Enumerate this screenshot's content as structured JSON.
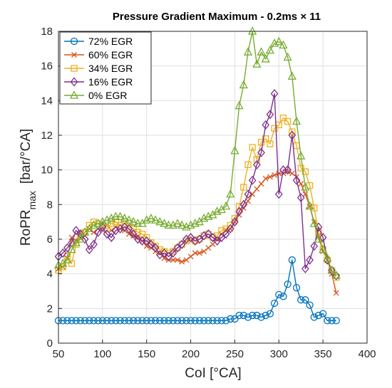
{
  "chart_data": {
    "type": "line",
    "title": "Pressure Gradient Maximum - 0.2ms × 11",
    "xlabel": "CoI [°CA]",
    "ylabel": {
      "main": "RoPR",
      "sub": "max",
      "unit": "[bar/°CA]"
    },
    "xlim": [
      50,
      400
    ],
    "ylim": [
      0,
      18
    ],
    "xticks": [
      "50",
      "100",
      "150",
      "200",
      "250",
      "300",
      "350",
      "400"
    ],
    "yticks": [
      "0",
      "2",
      "4",
      "6",
      "8",
      "10",
      "12",
      "14",
      "16",
      "18"
    ],
    "grid": true,
    "legend_position": "top-left",
    "series": [
      {
        "name": "72% EGR",
        "color": "#0072bd",
        "marker": "circle",
        "x": [
          50,
          55,
          60,
          65,
          70,
          75,
          80,
          85,
          90,
          95,
          100,
          105,
          110,
          115,
          120,
          125,
          130,
          135,
          140,
          145,
          150,
          155,
          160,
          165,
          170,
          175,
          180,
          185,
          190,
          195,
          200,
          205,
          210,
          215,
          220,
          225,
          230,
          235,
          240,
          245,
          250,
          255,
          260,
          265,
          270,
          275,
          280,
          285,
          290,
          295,
          300,
          305,
          310,
          315,
          320,
          325,
          330,
          335,
          340,
          345,
          350,
          355,
          360,
          365
        ],
        "y": [
          1.3,
          1.3,
          1.3,
          1.3,
          1.3,
          1.3,
          1.3,
          1.3,
          1.3,
          1.3,
          1.3,
          1.3,
          1.3,
          1.3,
          1.3,
          1.3,
          1.3,
          1.3,
          1.3,
          1.3,
          1.3,
          1.3,
          1.3,
          1.3,
          1.3,
          1.3,
          1.3,
          1.3,
          1.3,
          1.3,
          1.3,
          1.3,
          1.3,
          1.3,
          1.3,
          1.3,
          1.3,
          1.3,
          1.3,
          1.4,
          1.4,
          1.6,
          1.6,
          1.5,
          1.6,
          1.6,
          1.5,
          1.6,
          1.7,
          2.3,
          2.8,
          2.7,
          3.4,
          4.8,
          3.2,
          2.5,
          2.5,
          2.2,
          1.5,
          1.6,
          1.7,
          1.3,
          1.3,
          1.3
        ]
      },
      {
        "name": "60% EGR",
        "color": "#d95319",
        "marker": "x",
        "x": [
          50,
          55,
          60,
          65,
          70,
          75,
          80,
          85,
          90,
          95,
          100,
          105,
          110,
          115,
          120,
          125,
          130,
          135,
          140,
          145,
          150,
          155,
          160,
          165,
          170,
          175,
          180,
          185,
          190,
          195,
          200,
          205,
          210,
          215,
          220,
          225,
          230,
          235,
          240,
          245,
          250,
          255,
          260,
          265,
          270,
          275,
          280,
          285,
          290,
          295,
          300,
          305,
          310,
          315,
          320,
          325,
          330,
          335,
          340,
          345,
          350,
          355,
          360,
          365
        ],
        "y": [
          4.3,
          4.4,
          4.9,
          6.1,
          5.9,
          6.4,
          6.2,
          6.6,
          6.4,
          6.6,
          6.5,
          6.8,
          6.5,
          6.7,
          6.6,
          6.5,
          6.3,
          6.2,
          6.1,
          5.9,
          5.6,
          5.5,
          5.3,
          5.2,
          4.9,
          4.8,
          4.8,
          4.8,
          4.7,
          4.8,
          5.0,
          5.2,
          5.2,
          5.3,
          5.5,
          5.7,
          6.0,
          6.3,
          6.5,
          6.6,
          7.0,
          7.4,
          7.8,
          8.2,
          8.6,
          8.9,
          9.2,
          9.5,
          9.6,
          9.7,
          9.8,
          9.8,
          9.9,
          9.8,
          9.6,
          9.2,
          8.6,
          7.9,
          7.0,
          6.2,
          5.3,
          4.8,
          4.0,
          2.9
        ]
      },
      {
        "name": "34% EGR",
        "color": "#edb120",
        "marker": "square",
        "x": [
          50,
          55,
          60,
          65,
          70,
          75,
          80,
          85,
          90,
          95,
          100,
          105,
          110,
          115,
          120,
          125,
          130,
          135,
          140,
          145,
          150,
          155,
          160,
          165,
          170,
          175,
          180,
          185,
          190,
          195,
          200,
          205,
          210,
          215,
          220,
          225,
          230,
          235,
          240,
          245,
          250,
          255,
          260,
          265,
          270,
          275,
          280,
          285,
          290,
          295,
          300,
          305,
          310,
          315,
          320,
          325,
          330,
          335,
          340,
          345,
          350,
          355,
          360,
          365
        ],
        "y": [
          4.2,
          4.4,
          5.0,
          4.6,
          5.7,
          6.2,
          6.4,
          6.8,
          7.0,
          6.9,
          6.8,
          6.6,
          6.9,
          7.0,
          6.8,
          6.9,
          6.7,
          6.6,
          6.4,
          6.3,
          6.1,
          5.8,
          5.6,
          5.4,
          5.3,
          5.2,
          5.3,
          5.5,
          5.7,
          5.9,
          6.0,
          5.9,
          6.0,
          6.2,
          6.3,
          6.1,
          6.2,
          6.5,
          6.6,
          6.8,
          7.2,
          7.9,
          9.0,
          10.3,
          11.3,
          10.6,
          11.6,
          11.8,
          11.5,
          12.4,
          12.6,
          13.0,
          12.8,
          12.2,
          11.4,
          10.1,
          9.9,
          9.1,
          7.8,
          6.4,
          5.4,
          4.8,
          4.2,
          3.8
        ]
      },
      {
        "name": "16% EGR",
        "color": "#7e2f8e",
        "marker": "diamond",
        "x": [
          50,
          55,
          60,
          65,
          70,
          75,
          80,
          85,
          90,
          95,
          100,
          105,
          110,
          115,
          120,
          125,
          130,
          135,
          140,
          145,
          150,
          155,
          160,
          165,
          170,
          175,
          180,
          185,
          190,
          195,
          200,
          205,
          210,
          215,
          220,
          225,
          230,
          235,
          240,
          245,
          250,
          255,
          260,
          265,
          270,
          275,
          280,
          285,
          290,
          295,
          300,
          305,
          310,
          315,
          320,
          325,
          330,
          335,
          340,
          345,
          350,
          355,
          360,
          365
        ],
        "y": [
          5.0,
          5.2,
          5.5,
          5.8,
          6.5,
          6.3,
          6.0,
          5.4,
          5.7,
          6.4,
          6.7,
          6.3,
          6.1,
          6.5,
          6.6,
          6.7,
          6.6,
          6.3,
          6.0,
          5.9,
          5.9,
          5.7,
          5.5,
          5.1,
          5.2,
          5.0,
          5.2,
          5.5,
          5.7,
          6.0,
          6.1,
          5.9,
          6.0,
          6.2,
          6.3,
          6.1,
          5.9,
          6.1,
          6.3,
          6.6,
          7.0,
          7.6,
          8.0,
          8.6,
          9.4,
          10.3,
          11.0,
          12.6,
          13.2,
          14.4,
          8.6,
          10.0,
          10.0,
          12.0,
          9.4,
          8.4,
          4.3,
          4.8,
          5.6,
          6.7,
          6.1,
          4.8,
          4.2,
          3.9
        ]
      },
      {
        "name": "0% EGR",
        "color": "#77ac30",
        "marker": "triangle",
        "x": [
          50,
          55,
          60,
          65,
          70,
          75,
          80,
          85,
          90,
          95,
          100,
          105,
          110,
          115,
          120,
          125,
          130,
          135,
          140,
          145,
          150,
          155,
          160,
          165,
          170,
          175,
          180,
          185,
          190,
          195,
          200,
          205,
          210,
          215,
          220,
          225,
          230,
          235,
          240,
          245,
          250,
          255,
          260,
          265,
          270,
          275,
          280,
          285,
          290,
          295,
          300,
          305,
          310,
          315,
          320,
          325,
          330,
          335,
          340,
          345,
          350,
          355,
          360,
          365
        ],
        "y": [
          4.5,
          4.6,
          4.8,
          5.4,
          5.8,
          6.0,
          6.4,
          6.6,
          6.8,
          6.9,
          7.0,
          7.1,
          7.2,
          7.3,
          7.3,
          7.2,
          7.1,
          7.0,
          6.9,
          6.9,
          7.1,
          7.2,
          7.1,
          7.0,
          6.9,
          6.8,
          6.8,
          6.9,
          6.8,
          6.7,
          6.8,
          6.9,
          7.0,
          7.2,
          7.3,
          7.4,
          7.6,
          7.7,
          7.9,
          8.6,
          11.1,
          13.7,
          14.9,
          16.8,
          18.0,
          16.1,
          16.8,
          16.4,
          16.9,
          17.3,
          17.4,
          17.2,
          16.5,
          15.4,
          12.8,
          10.8,
          9.0,
          7.9,
          6.9,
          6.0,
          5.4,
          4.9,
          4.2,
          3.9
        ]
      }
    ]
  }
}
